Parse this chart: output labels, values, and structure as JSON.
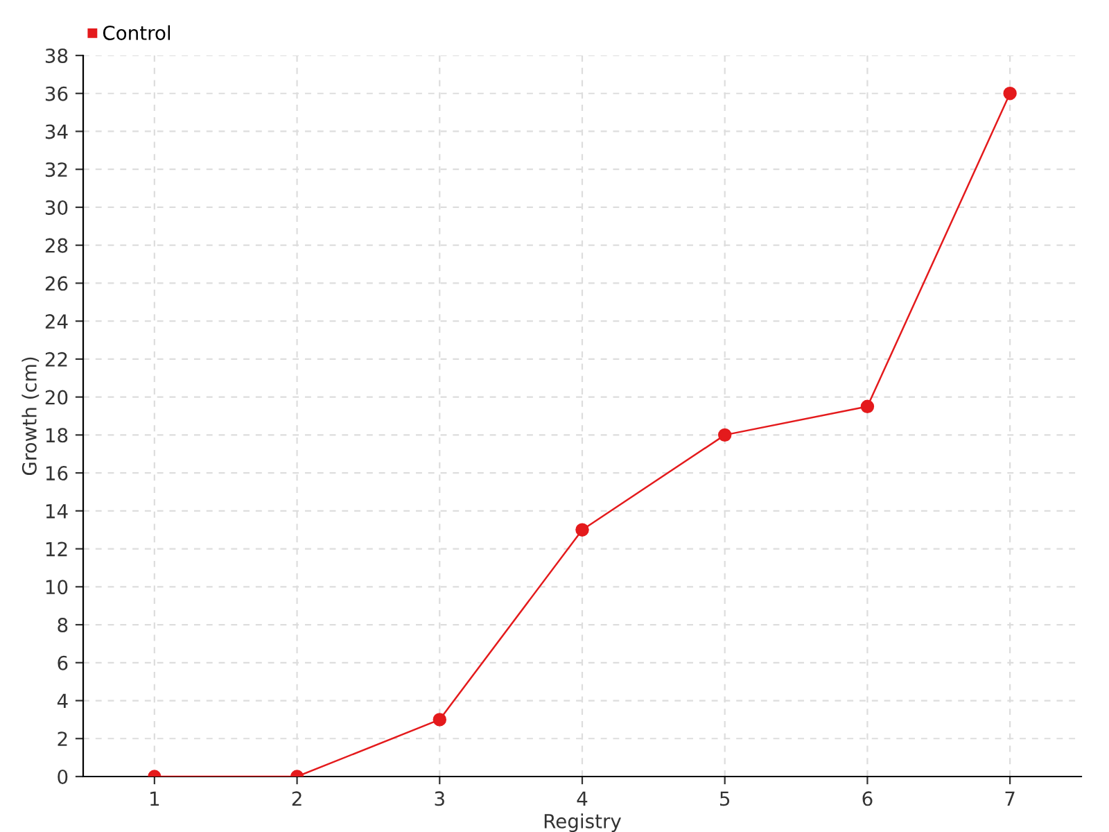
{
  "chart_data": {
    "type": "line",
    "xlabel": "Registry",
    "ylabel": "Growth (cm)",
    "x": [
      1,
      2,
      3,
      4,
      5,
      6,
      7
    ],
    "series": [
      {
        "name": "Control",
        "color": "#e41a1c",
        "values": [
          0,
          0,
          3,
          13,
          18,
          19.5,
          36
        ]
      }
    ],
    "xlim": [
      0.5,
      7.5
    ],
    "xticks": [
      1,
      2,
      3,
      4,
      5,
      6,
      7
    ],
    "ylim": [
      0,
      38
    ],
    "yticks": [
      0,
      2,
      4,
      6,
      8,
      10,
      12,
      14,
      16,
      18,
      20,
      22,
      24,
      26,
      28,
      30,
      32,
      34,
      36,
      38
    ],
    "grid": true,
    "legend": "top left",
    "marker": "circle",
    "line_style": "solid"
  }
}
